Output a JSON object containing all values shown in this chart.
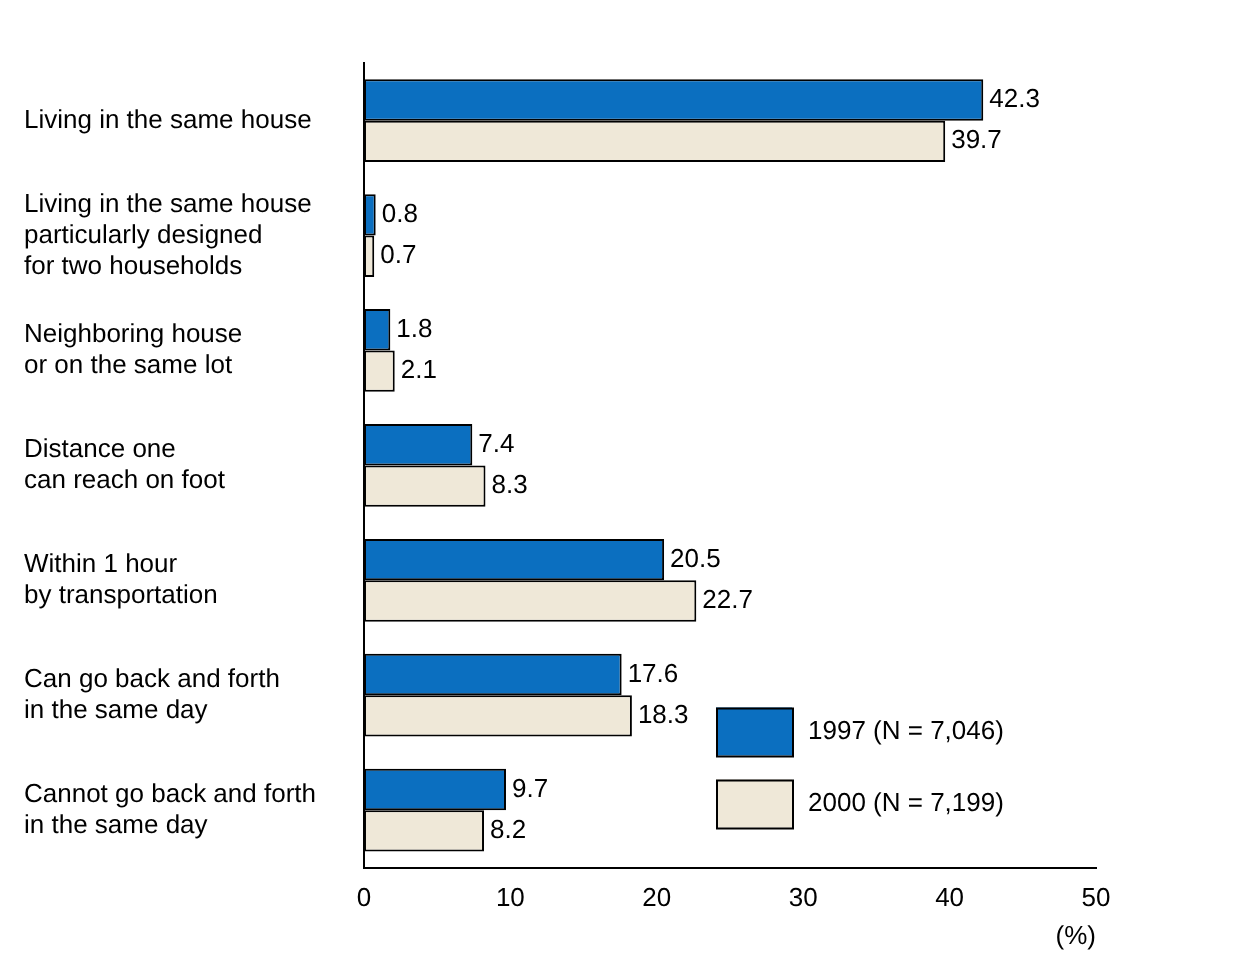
{
  "chart_data": {
    "type": "bar",
    "orientation": "horizontal",
    "categories": [
      "Living in the same house",
      "Living in the same house\nparticularly designed\nfor two households",
      "Neighboring house\nor on the same lot",
      "Distance one\ncan reach on foot",
      "Within 1 hour\nby transportation",
      "Can go back and forth\nin the same day",
      "Cannot go back and forth\nin the same day"
    ],
    "series": [
      {
        "name": "1997 (N = 7,046)",
        "color": "#0b6fc0",
        "values": [
          42.3,
          0.8,
          1.8,
          7.4,
          20.5,
          17.6,
          9.7
        ]
      },
      {
        "name": "2000 (N = 7,199)",
        "color": "#efe8d8",
        "values": [
          39.7,
          0.7,
          2.1,
          8.3,
          22.7,
          18.3,
          8.2
        ]
      }
    ],
    "xlim": [
      0,
      50
    ],
    "xticks": [
      0,
      10,
      20,
      30,
      40,
      50
    ],
    "xlabel": "(%)",
    "data_labels": true,
    "grid": false,
    "legend": "bottom right"
  }
}
